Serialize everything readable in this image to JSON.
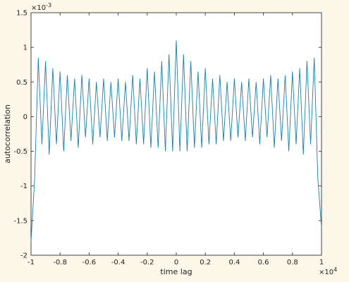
{
  "chart_data": {
    "type": "line",
    "xlabel": "time lag",
    "ylabel": "autocorrelation",
    "x_multiplier": {
      "base": "×10",
      "exponent": "4"
    },
    "y_multiplier": {
      "base": "×10",
      "exponent": "-3"
    },
    "x": [
      -1,
      -0.975,
      -0.95,
      -0.925,
      -0.9,
      -0.875,
      -0.85,
      -0.825,
      -0.8,
      -0.775,
      -0.75,
      -0.725,
      -0.7,
      -0.675,
      -0.65,
      -0.625,
      -0.6,
      -0.575,
      -0.55,
      -0.525,
      -0.5,
      -0.475,
      -0.45,
      -0.425,
      -0.4,
      -0.375,
      -0.35,
      -0.325,
      -0.3,
      -0.275,
      -0.25,
      -0.225,
      -0.2,
      -0.175,
      -0.15,
      -0.125,
      -0.1,
      -0.075,
      -0.05,
      -0.025,
      0,
      0.025,
      0.05,
      0.075,
      0.1,
      0.125,
      0.15,
      0.175,
      0.2,
      0.225,
      0.25,
      0.275,
      0.3,
      0.325,
      0.35,
      0.375,
      0.4,
      0.425,
      0.45,
      0.475,
      0.5,
      0.525,
      0.55,
      0.575,
      0.6,
      0.625,
      0.65,
      0.675,
      0.7,
      0.725,
      0.75,
      0.775,
      0.8,
      0.825,
      0.85,
      0.875,
      0.9,
      0.925,
      0.95,
      0.975,
      1
    ],
    "series": [
      {
        "color": "#1a7fae",
        "values": [
          -1.8,
          -0.9,
          0.85,
          -0.4,
          0.8,
          -0.55,
          0.7,
          -0.4,
          0.65,
          -0.5,
          0.6,
          -0.35,
          0.55,
          -0.45,
          0.6,
          -0.3,
          0.55,
          -0.4,
          0.5,
          -0.3,
          0.55,
          -0.35,
          0.5,
          -0.3,
          0.55,
          -0.35,
          0.5,
          -0.35,
          0.6,
          -0.4,
          0.55,
          -0.4,
          0.7,
          -0.45,
          0.65,
          -0.45,
          0.8,
          -0.5,
          0.9,
          -0.5,
          1.1,
          -0.5,
          0.9,
          -0.5,
          0.8,
          -0.45,
          0.65,
          -0.45,
          0.7,
          -0.4,
          0.55,
          -0.4,
          0.6,
          -0.35,
          0.5,
          -0.35,
          0.55,
          -0.3,
          0.5,
          -0.35,
          0.55,
          -0.3,
          0.5,
          -0.4,
          0.55,
          -0.3,
          0.6,
          -0.45,
          0.55,
          -0.35,
          0.6,
          -0.5,
          0.65,
          -0.4,
          0.7,
          -0.55,
          0.8,
          -0.4,
          0.85,
          -0.9,
          -1.6
        ]
      }
    ],
    "xlim": [
      -1,
      1
    ],
    "xticks": [
      -1,
      -0.8,
      -0.6,
      -0.4,
      -0.2,
      0,
      0.2,
      0.4,
      0.6,
      0.8,
      1
    ],
    "ylim": [
      -2,
      1.5
    ],
    "yticks": [
      -2,
      -1.5,
      -1,
      -0.5,
      0,
      0.5,
      1,
      1.5
    ]
  }
}
